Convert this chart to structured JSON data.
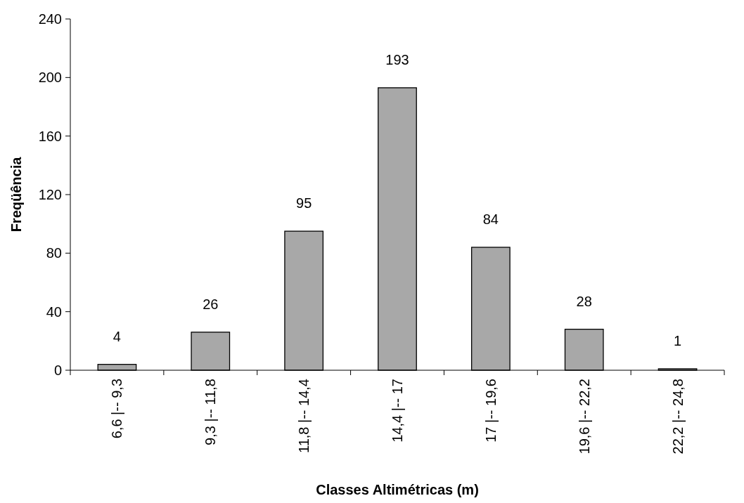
{
  "chart_data": {
    "type": "bar",
    "xlabel": "Classes Altimétricas (m)",
    "ylabel": "Freqüência",
    "categories": [
      "6,6 |-- 9,3",
      "9,3 |-- 11,8",
      "11,8 |-- 14,4",
      "14,4 |-- 17",
      "17 |-- 19,6",
      "19,6 |-- 22,2",
      "22,2 |-- 24,8"
    ],
    "values": [
      4,
      26,
      95,
      193,
      84,
      28,
      1
    ],
    "color": "#a8a8a8",
    "ylim": [
      0,
      240
    ],
    "yticks": [
      0,
      40,
      80,
      120,
      160,
      200,
      240
    ],
    "grid": false,
    "data_labels": true
  }
}
